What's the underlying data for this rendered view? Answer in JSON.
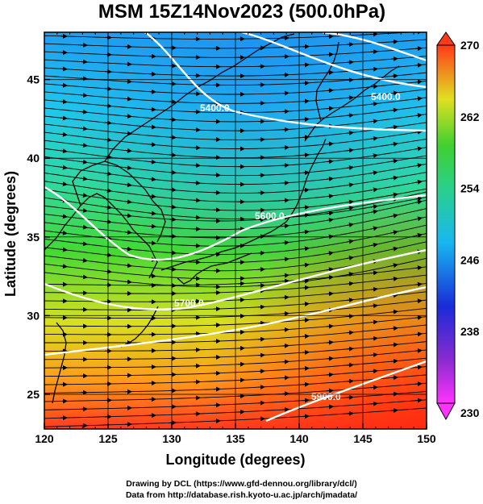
{
  "title": "MSM 15Z14Nov2023 (500.0hPa)",
  "xlabel": "Longitude (degrees)",
  "ylabel": "Latitude  (degrees)",
  "x_ticks": [
    "120",
    "125",
    "130",
    "135",
    "140",
    "145",
    "150"
  ],
  "y_ticks": [
    "25",
    "30",
    "35",
    "40",
    "45"
  ],
  "colorbar_ticks": [
    "270",
    "262",
    "254",
    "246",
    "238",
    "230"
  ],
  "contour_labels": [
    "5400.0",
    "5600.0",
    "5700.0",
    "5900.0",
    "5400.0"
  ],
  "credit_line1": "Drawing by DCL (https://www.gfd-dennou.org/library/dcl/)",
  "credit_line2": "Data from http://database.rish.kyoto-u.ac.jp/arch/jmadata/",
  "map_data": {
    "lon_range": [
      120,
      150
    ],
    "lat_range": [
      22.8,
      48
    ],
    "field": "temperature",
    "colorbar_range": [
      230,
      270
    ],
    "colorbar_orientation": "vertical-right",
    "overlays": [
      "streamlines with arrows",
      "white geopotential height contours",
      "black coastlines",
      "black graticule"
    ],
    "colors": {
      "warm": "#e83a1f",
      "hot": "#e41a1c",
      "mid": "#22c832",
      "cool": "#22d0f0",
      "cold_end": "#ff2aff",
      "warm_end": "#ff3b1f"
    }
  }
}
